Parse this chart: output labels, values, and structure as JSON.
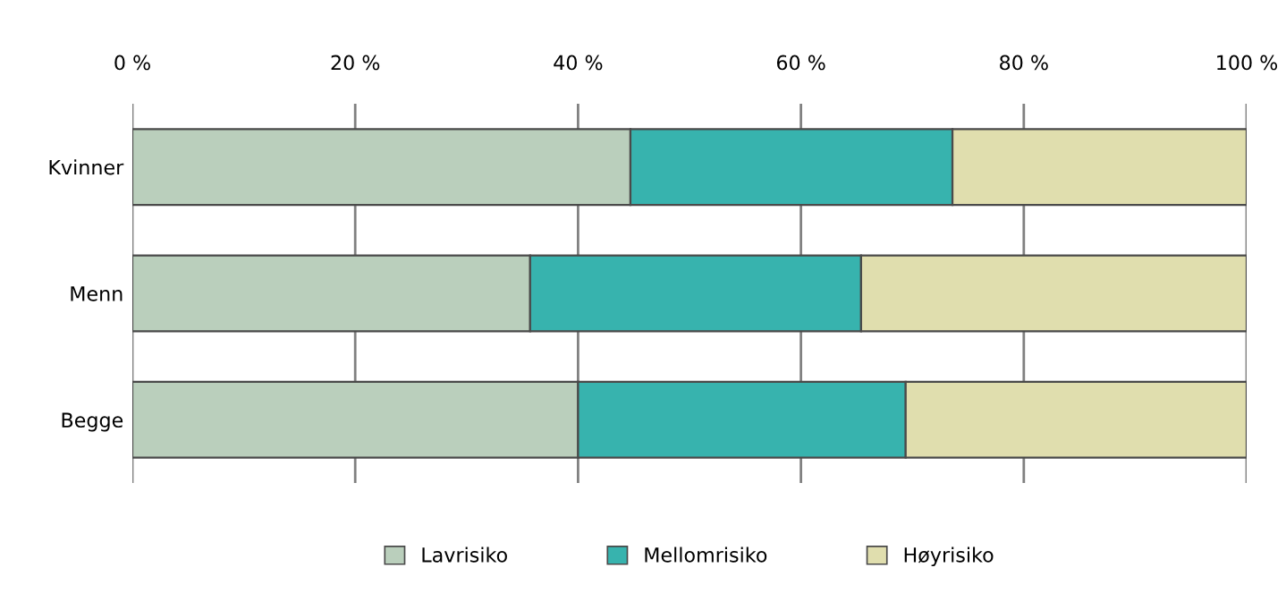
{
  "chart_data": {
    "type": "bar",
    "orientation": "horizontal",
    "stacked": true,
    "categories": [
      "Kvinner",
      "Menn",
      "Begge"
    ],
    "series": [
      {
        "name": "Lavrisiko",
        "color": "#bacfbc",
        "values": [
          44.7,
          35.7,
          40.0
        ]
      },
      {
        "name": "Mellomrisiko",
        "color": "#37b3ae",
        "values": [
          28.9,
          29.7,
          29.4
        ]
      },
      {
        "name": "Høyrisiko",
        "color": "#e0deae",
        "values": [
          26.4,
          34.6,
          30.6
        ]
      }
    ],
    "xlim": [
      0,
      100
    ],
    "xticks": [
      {
        "value": 0,
        "label": "0 %"
      },
      {
        "value": 20,
        "label": "20 %"
      },
      {
        "value": 40,
        "label": "40 %"
      },
      {
        "value": 60,
        "label": "60 %"
      },
      {
        "value": 80,
        "label": "80 %"
      },
      {
        "value": 100,
        "label": "100 %"
      }
    ],
    "grid": "x",
    "legend": "bottom"
  }
}
